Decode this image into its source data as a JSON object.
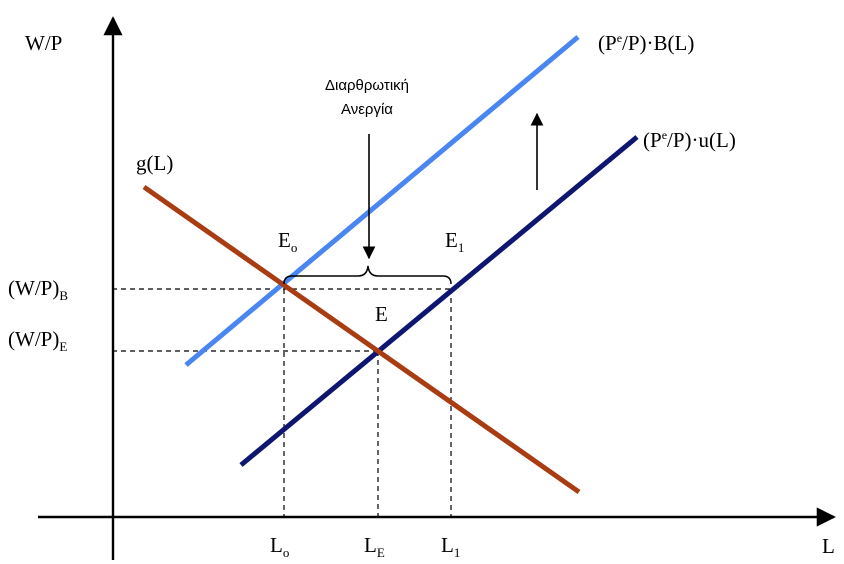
{
  "axes": {
    "y_label": "W/P",
    "x_label": "L"
  },
  "curves": {
    "labour_demand": "g(L)",
    "wage_setting_upper": {
      "pre": "(P",
      "sup": "e",
      "post": "/P)·B(L)",
      "color": "#4A86F0"
    },
    "wage_setting_lower": {
      "pre": "(P",
      "sup": "e",
      "post": "/P)·u(L)",
      "color": "#0F1670"
    },
    "demand_color": "#A83C12"
  },
  "points": {
    "e0": {
      "main": "E",
      "sub": "o"
    },
    "e1": {
      "main": "E",
      "sub": "1"
    },
    "e": "E"
  },
  "y_ticks": {
    "wp_b": {
      "main": "(W/P)",
      "sub": "B"
    },
    "wp_e": {
      "main": "(W/P)",
      "sub": "E"
    }
  },
  "x_ticks": {
    "l0": {
      "main": "L",
      "sub": "o"
    },
    "le": {
      "main": "L",
      "sub": "E"
    },
    "l1": {
      "main": "L",
      "sub": "1"
    }
  },
  "annotation": {
    "line1": "Διαρθρωτική",
    "line2": "Ανεργία"
  }
}
